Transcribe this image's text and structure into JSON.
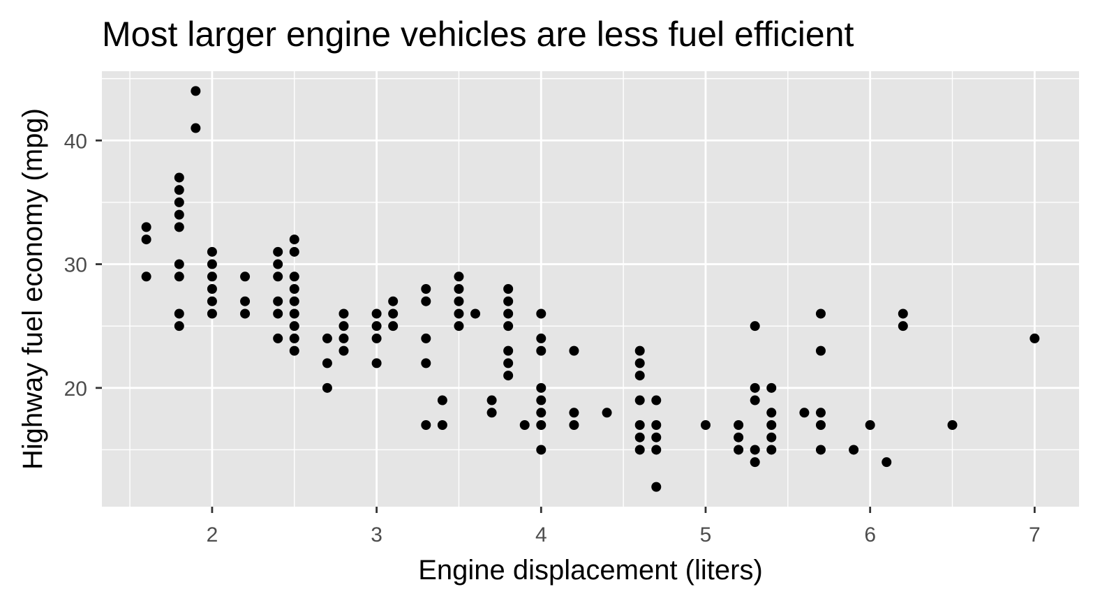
{
  "chart_data": {
    "type": "scatter",
    "title": "Most larger engine vehicles are less fuel efficient",
    "xlabel": "Engine displacement (liters)",
    "ylabel": "Highway fuel economy (mpg)",
    "xlim": [
      1.33,
      7.27
    ],
    "ylim": [
      10.4,
      45.6
    ],
    "xticks": [
      2,
      3,
      4,
      5,
      6,
      7
    ],
    "yticks": [
      20,
      30,
      40
    ],
    "xticklabels": [
      "2",
      "3",
      "4",
      "5",
      "6",
      "7"
    ],
    "yticklabels": [
      "20",
      "30",
      "40"
    ],
    "grid": true,
    "colors": {
      "panel": "#e5e5e5",
      "grid": "#ffffff",
      "point": "#000000",
      "tick": "#333333"
    },
    "points": [
      [
        1.6,
        33
      ],
      [
        1.6,
        32
      ],
      [
        1.6,
        29
      ],
      [
        1.8,
        37
      ],
      [
        1.8,
        36
      ],
      [
        1.8,
        35
      ],
      [
        1.8,
        34
      ],
      [
        1.8,
        33
      ],
      [
        1.8,
        30
      ],
      [
        1.8,
        29
      ],
      [
        1.8,
        26
      ],
      [
        1.8,
        25
      ],
      [
        1.9,
        44
      ],
      [
        1.9,
        41
      ],
      [
        2.0,
        31
      ],
      [
        2.0,
        30
      ],
      [
        2.0,
        29
      ],
      [
        2.0,
        28
      ],
      [
        2.0,
        27
      ],
      [
        2.0,
        26
      ],
      [
        2.2,
        29
      ],
      [
        2.2,
        27
      ],
      [
        2.2,
        26
      ],
      [
        2.4,
        31
      ],
      [
        2.4,
        30
      ],
      [
        2.4,
        29
      ],
      [
        2.4,
        27
      ],
      [
        2.4,
        26
      ],
      [
        2.4,
        24
      ],
      [
        2.5,
        32
      ],
      [
        2.5,
        31
      ],
      [
        2.5,
        29
      ],
      [
        2.5,
        28
      ],
      [
        2.5,
        27
      ],
      [
        2.5,
        26
      ],
      [
        2.5,
        25
      ],
      [
        2.5,
        24
      ],
      [
        2.5,
        23
      ],
      [
        2.7,
        24
      ],
      [
        2.7,
        22
      ],
      [
        2.7,
        20
      ],
      [
        2.8,
        26
      ],
      [
        2.8,
        25
      ],
      [
        2.8,
        24
      ],
      [
        2.8,
        23
      ],
      [
        3.0,
        26
      ],
      [
        3.0,
        25
      ],
      [
        3.0,
        24
      ],
      [
        3.0,
        22
      ],
      [
        3.1,
        27
      ],
      [
        3.1,
        26
      ],
      [
        3.1,
        25
      ],
      [
        3.3,
        28
      ],
      [
        3.3,
        27
      ],
      [
        3.3,
        24
      ],
      [
        3.3,
        22
      ],
      [
        3.3,
        17
      ],
      [
        3.4,
        19
      ],
      [
        3.4,
        17
      ],
      [
        3.5,
        29
      ],
      [
        3.5,
        28
      ],
      [
        3.5,
        27
      ],
      [
        3.5,
        26
      ],
      [
        3.5,
        25
      ],
      [
        3.6,
        26
      ],
      [
        3.7,
        19
      ],
      [
        3.7,
        18
      ],
      [
        3.8,
        28
      ],
      [
        3.8,
        27
      ],
      [
        3.8,
        26
      ],
      [
        3.8,
        25
      ],
      [
        3.8,
        23
      ],
      [
        3.8,
        22
      ],
      [
        3.8,
        21
      ],
      [
        3.9,
        17
      ],
      [
        4.0,
        26
      ],
      [
        4.0,
        24
      ],
      [
        4.0,
        23
      ],
      [
        4.0,
        20
      ],
      [
        4.0,
        19
      ],
      [
        4.0,
        18
      ],
      [
        4.0,
        17
      ],
      [
        4.0,
        15
      ],
      [
        4.2,
        23
      ],
      [
        4.2,
        18
      ],
      [
        4.2,
        17
      ],
      [
        4.4,
        18
      ],
      [
        4.6,
        23
      ],
      [
        4.6,
        22
      ],
      [
        4.6,
        21
      ],
      [
        4.6,
        19
      ],
      [
        4.6,
        17
      ],
      [
        4.6,
        16
      ],
      [
        4.6,
        15
      ],
      [
        4.7,
        19
      ],
      [
        4.7,
        17
      ],
      [
        4.7,
        16
      ],
      [
        4.7,
        15
      ],
      [
        4.7,
        12
      ],
      [
        5.0,
        17
      ],
      [
        5.2,
        17
      ],
      [
        5.2,
        16
      ],
      [
        5.2,
        15
      ],
      [
        5.3,
        25
      ],
      [
        5.3,
        20
      ],
      [
        5.3,
        19
      ],
      [
        5.3,
        15
      ],
      [
        5.3,
        14
      ],
      [
        5.4,
        20
      ],
      [
        5.4,
        18
      ],
      [
        5.4,
        17
      ],
      [
        5.4,
        16
      ],
      [
        5.4,
        15
      ],
      [
        5.6,
        18
      ],
      [
        5.7,
        26
      ],
      [
        5.7,
        23
      ],
      [
        5.7,
        18
      ],
      [
        5.7,
        17
      ],
      [
        5.7,
        15
      ],
      [
        5.9,
        15
      ],
      [
        6.0,
        17
      ],
      [
        6.1,
        14
      ],
      [
        6.2,
        26
      ],
      [
        6.2,
        25
      ],
      [
        6.5,
        17
      ],
      [
        7.0,
        24
      ]
    ]
  }
}
